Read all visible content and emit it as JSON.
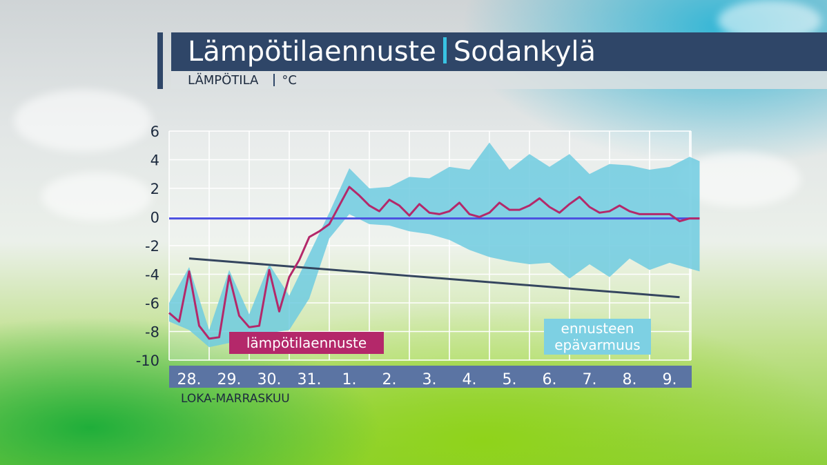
{
  "header": {
    "title": "Lämpötilaennuste",
    "location": "Sodankylä",
    "subtitle": "LÄMPÖTILA",
    "unit": "°C"
  },
  "months_label": "LOKA-MARRASKUU",
  "legend": {
    "forecast": "lämpötilaennuste",
    "uncertainty_line1": "ennusteen",
    "uncertainty_line2": "epävarmuus"
  },
  "colors": {
    "forecast": "#b4286a",
    "uncertainty": "#6fcbe0",
    "zero_line": "#4b4fe0",
    "trend": "#34455e",
    "title_bar": "#2f4668",
    "accent": "#39c3e3",
    "xaxis_bar": "#5b74a3"
  },
  "chart_data": {
    "type": "line",
    "title": "Lämpötilaennuste",
    "ylabel": "°C",
    "xlabel": "LOKA-MARRASKUU",
    "ylim": [
      -10,
      6
    ],
    "yticks": [
      6,
      4,
      2,
      0,
      -2,
      -4,
      -6,
      -8,
      -10
    ],
    "categories": [
      "28.",
      "29.",
      "30.",
      "31.",
      "1.",
      "2.",
      "3.",
      "4.",
      "5.",
      "6.",
      "7.",
      "8.",
      "9."
    ],
    "grid": true,
    "series": [
      {
        "name": "lämpötilaennuste",
        "x": [
          27.0,
          27.25,
          27.5,
          27.75,
          28.0,
          28.25,
          28.5,
          28.75,
          29.0,
          29.25,
          29.5,
          29.75,
          30.0,
          30.25,
          30.5,
          30.75,
          31.0,
          31.25,
          31.5,
          31.75,
          32.0,
          32.25,
          32.5,
          32.75,
          33.0,
          33.25,
          33.5,
          33.75,
          34.0,
          34.25,
          34.5,
          34.75,
          35.0,
          35.25,
          35.5,
          35.75,
          36.0,
          36.25,
          36.5,
          36.75,
          37.0,
          37.25,
          37.5,
          37.75,
          38.0,
          38.25,
          38.5,
          38.75,
          39.0,
          39.25,
          39.5,
          39.75,
          40.0,
          40.25
        ],
        "values": [
          -6.7,
          -7.3,
          -3.8,
          -7.6,
          -8.5,
          -8.4,
          -4.1,
          -6.9,
          -7.7,
          -7.6,
          -3.7,
          -6.6,
          -4.2,
          -3.0,
          -1.4,
          -1.0,
          -0.5,
          0.8,
          2.1,
          1.5,
          0.8,
          0.4,
          1.2,
          0.8,
          0.1,
          0.9,
          0.3,
          0.2,
          0.4,
          1.0,
          0.2,
          0.0,
          0.3,
          1.0,
          0.5,
          0.5,
          0.8,
          1.3,
          0.7,
          0.3,
          0.9,
          1.4,
          0.7,
          0.3,
          0.4,
          0.8,
          0.4,
          0.2,
          0.2,
          0.2,
          0.2,
          -0.3,
          -0.1,
          -0.1
        ]
      },
      {
        "name": "ennusteen epävarmuus",
        "x": [
          27.0,
          27.5,
          28.0,
          28.5,
          29.0,
          29.5,
          30.0,
          30.5,
          31.0,
          31.5,
          32.0,
          32.5,
          33.0,
          33.5,
          34.0,
          34.5,
          35.0,
          35.5,
          36.0,
          36.5,
          37.0,
          37.5,
          38.0,
          38.5,
          39.0,
          39.5,
          40.0,
          40.25
        ],
        "upper": [
          -6.0,
          -3.5,
          -7.9,
          -3.7,
          -6.8,
          -3.3,
          -5.5,
          -2.6,
          0.3,
          3.4,
          2.0,
          2.1,
          2.8,
          2.7,
          3.5,
          3.3,
          5.2,
          3.3,
          4.4,
          3.5,
          4.4,
          3.0,
          3.7,
          3.6,
          3.3,
          3.5,
          4.2,
          3.9
        ],
        "lower": [
          -7.3,
          -7.9,
          -9.1,
          -8.8,
          -8.6,
          -8.1,
          -7.9,
          -5.7,
          -1.5,
          0.2,
          -0.5,
          -0.6,
          -1.0,
          -1.2,
          -1.6,
          -2.3,
          -2.8,
          -3.1,
          -3.3,
          -3.2,
          -4.3,
          -3.3,
          -4.2,
          -2.9,
          -3.7,
          -3.2,
          -3.6,
          -3.8
        ]
      },
      {
        "name": "",
        "x": [
          27.5,
          39.75
        ],
        "values": [
          -2.9,
          -5.6
        ]
      },
      {
        "name": "",
        "x": [
          27.0,
          40.25
        ],
        "values": [
          -0.1,
          -0.1
        ]
      }
    ]
  }
}
